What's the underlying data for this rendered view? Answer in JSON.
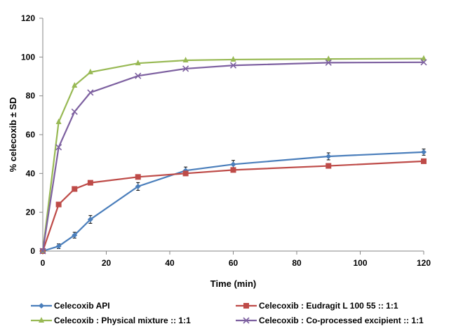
{
  "chart_data": {
    "type": "line",
    "xlabel": "Time (min)",
    "ylabel": "% celecoxib ± SD",
    "xlim": [
      0,
      120
    ],
    "ylim": [
      0,
      120
    ],
    "x_ticks": [
      0,
      20,
      40,
      60,
      80,
      100,
      120
    ],
    "y_ticks": [
      0,
      20,
      40,
      60,
      80,
      100,
      120
    ],
    "x": [
      0,
      5,
      10,
      15,
      30,
      45,
      60,
      90,
      120
    ],
    "grid": false,
    "legend_position": "bottom",
    "series": [
      {
        "name": "Celecoxib API",
        "color": "#4a7ebb",
        "marker": "diamond",
        "values": [
          0,
          2.5,
          8.2,
          16.3,
          33.3,
          41.5,
          44.7,
          48.8,
          51.0
        ],
        "error": [
          0,
          1.2,
          1.5,
          2.0,
          2.0,
          1.8,
          2.0,
          1.8,
          1.6
        ]
      },
      {
        "name": "Celecoxib : Eudragit L 100 55 :: 1:1",
        "color": "#be4b48",
        "marker": "square",
        "values": [
          0,
          24.0,
          32.0,
          35.2,
          38.2,
          40.0,
          41.8,
          43.9,
          46.3
        ],
        "error": [
          0,
          0,
          0,
          0,
          0,
          0,
          0,
          0,
          0
        ]
      },
      {
        "name": "Celecoxib : Physical mixture :: 1:1",
        "color": "#98b954",
        "marker": "triangle",
        "values": [
          0,
          66.5,
          85.3,
          92.2,
          96.8,
          98.3,
          98.7,
          99.0,
          99.2
        ],
        "error": [
          0,
          0,
          0,
          0,
          0,
          0,
          0,
          0,
          0
        ]
      },
      {
        "name": "Celecoxib : Co-processed excipient :: 1:1",
        "color": "#7d60a0",
        "marker": "x",
        "values": [
          0,
          53.5,
          71.8,
          81.7,
          90.3,
          94.0,
          95.7,
          97.1,
          97.3
        ],
        "error": [
          0,
          0,
          0,
          0,
          0,
          0,
          0,
          0,
          0
        ]
      }
    ]
  }
}
